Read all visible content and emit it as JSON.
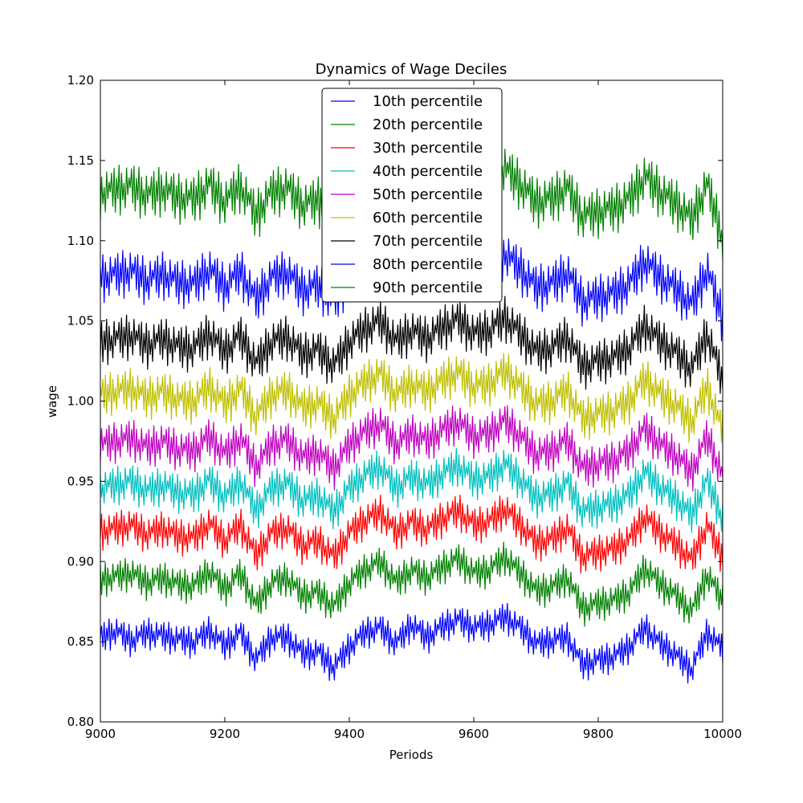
{
  "chart_data": {
    "type": "line",
    "title": "Dynamics of Wage Deciles",
    "xlabel": "Periods",
    "ylabel": "wage",
    "xlim": [
      9000,
      10000
    ],
    "ylim": [
      0.8,
      1.2
    ],
    "xticks": [
      9000,
      9200,
      9400,
      9600,
      9800,
      10000
    ],
    "yticks": [
      0.8,
      0.85,
      0.9,
      0.95,
      1.0,
      1.05,
      1.1,
      1.15,
      1.2
    ],
    "xtick_labels": [
      "9000",
      "9200",
      "9400",
      "9600",
      "9800",
      "10000"
    ],
    "ytick_labels": [
      "0.80",
      "0.85",
      "0.90",
      "0.95",
      "1.00",
      "1.05",
      "1.10",
      "1.15",
      "1.20"
    ],
    "grid": false,
    "legend_position": "top-center",
    "x_sampling": {
      "start": 9000,
      "end": 10000,
      "step": 25
    },
    "series": [
      {
        "name": "10th percentile",
        "color": "#0000ff",
        "values": [
          0.852,
          0.856,
          0.85,
          0.855,
          0.853,
          0.851,
          0.849,
          0.856,
          0.847,
          0.855,
          0.838,
          0.852,
          0.852,
          0.842,
          0.843,
          0.833,
          0.846,
          0.855,
          0.858,
          0.848,
          0.86,
          0.852,
          0.859,
          0.863,
          0.858,
          0.86,
          0.865,
          0.858,
          0.848,
          0.85,
          0.852,
          0.835,
          0.838,
          0.84,
          0.846,
          0.858,
          0.848,
          0.841,
          0.832,
          0.855,
          0.845
        ]
      },
      {
        "name": "20th percentile",
        "color": "#008000",
        "values": [
          0.888,
          0.89,
          0.892,
          0.886,
          0.889,
          0.885,
          0.884,
          0.893,
          0.882,
          0.892,
          0.872,
          0.886,
          0.889,
          0.878,
          0.88,
          0.871,
          0.886,
          0.894,
          0.899,
          0.886,
          0.894,
          0.889,
          0.896,
          0.901,
          0.892,
          0.894,
          0.902,
          0.892,
          0.881,
          0.883,
          0.889,
          0.87,
          0.873,
          0.875,
          0.88,
          0.895,
          0.885,
          0.878,
          0.868,
          0.891,
          0.875
        ]
      },
      {
        "name": "30th percentile",
        "color": "#ff0000",
        "values": [
          0.918,
          0.92,
          0.922,
          0.916,
          0.92,
          0.915,
          0.914,
          0.923,
          0.912,
          0.922,
          0.903,
          0.917,
          0.92,
          0.909,
          0.912,
          0.902,
          0.917,
          0.925,
          0.93,
          0.917,
          0.924,
          0.919,
          0.926,
          0.931,
          0.922,
          0.924,
          0.932,
          0.922,
          0.911,
          0.913,
          0.92,
          0.902,
          0.905,
          0.907,
          0.913,
          0.927,
          0.917,
          0.91,
          0.9,
          0.922,
          0.902
        ]
      },
      {
        "name": "40th percentile",
        "color": "#00bfbf",
        "values": [
          0.945,
          0.947,
          0.949,
          0.943,
          0.947,
          0.942,
          0.941,
          0.95,
          0.939,
          0.949,
          0.931,
          0.945,
          0.948,
          0.937,
          0.94,
          0.93,
          0.945,
          0.953,
          0.958,
          0.945,
          0.952,
          0.947,
          0.954,
          0.959,
          0.95,
          0.952,
          0.96,
          0.95,
          0.939,
          0.941,
          0.948,
          0.93,
          0.933,
          0.935,
          0.941,
          0.955,
          0.945,
          0.938,
          0.928,
          0.95,
          0.926
        ]
      },
      {
        "name": "50th percentile",
        "color": "#bf00bf",
        "values": [
          0.972,
          0.974,
          0.976,
          0.97,
          0.974,
          0.969,
          0.968,
          0.977,
          0.966,
          0.976,
          0.958,
          0.972,
          0.975,
          0.964,
          0.967,
          0.957,
          0.972,
          0.98,
          0.985,
          0.972,
          0.979,
          0.974,
          0.981,
          0.986,
          0.977,
          0.979,
          0.987,
          0.977,
          0.966,
          0.968,
          0.975,
          0.957,
          0.96,
          0.962,
          0.968,
          0.982,
          0.972,
          0.965,
          0.955,
          0.977,
          0.952
        ]
      },
      {
        "name": "60th percentile",
        "color": "#bfbf00",
        "values": [
          1.003,
          1.005,
          1.007,
          1.001,
          1.005,
          1.0,
          0.999,
          1.008,
          0.997,
          1.007,
          0.989,
          1.003,
          1.006,
          0.995,
          0.998,
          0.988,
          1.003,
          1.011,
          1.016,
          1.003,
          1.01,
          1.005,
          1.012,
          1.017,
          1.008,
          1.01,
          1.018,
          1.008,
          0.997,
          0.999,
          1.006,
          0.988,
          0.991,
          0.993,
          0.999,
          1.013,
          1.003,
          0.996,
          0.986,
          1.008,
          0.98
        ]
      },
      {
        "name": "70th percentile",
        "color": "#000000",
        "values": [
          1.036,
          1.038,
          1.04,
          1.034,
          1.038,
          1.033,
          1.032,
          1.041,
          1.03,
          1.04,
          1.022,
          1.036,
          1.039,
          1.028,
          1.031,
          1.021,
          1.036,
          1.044,
          1.049,
          1.036,
          1.043,
          1.038,
          1.045,
          1.05,
          1.041,
          1.043,
          1.051,
          1.041,
          1.03,
          1.032,
          1.039,
          1.021,
          1.024,
          1.026,
          1.032,
          1.046,
          1.036,
          1.029,
          1.019,
          1.041,
          1.012
        ]
      },
      {
        "name": "80th percentile",
        "color": "#0000ff",
        "values": [
          1.076,
          1.078,
          1.08,
          1.074,
          1.078,
          1.073,
          1.072,
          1.081,
          1.07,
          1.08,
          1.062,
          1.076,
          1.079,
          1.068,
          1.071,
          1.061,
          1.076,
          1.084,
          1.089,
          1.076,
          1.083,
          1.078,
          1.085,
          1.09,
          1.081,
          1.083,
          1.091,
          1.081,
          1.07,
          1.072,
          1.079,
          1.061,
          1.064,
          1.066,
          1.072,
          1.086,
          1.076,
          1.069,
          1.059,
          1.081,
          1.05
        ]
      },
      {
        "name": "90th percentile",
        "color": "#008000",
        "values": [
          1.129,
          1.131,
          1.133,
          1.127,
          1.131,
          1.126,
          1.125,
          1.134,
          1.123,
          1.133,
          1.115,
          1.129,
          1.132,
          1.121,
          1.124,
          1.114,
          1.129,
          1.137,
          1.142,
          1.129,
          1.136,
          1.131,
          1.138,
          1.143,
          1.134,
          1.136,
          1.144,
          1.134,
          1.123,
          1.125,
          1.132,
          1.114,
          1.117,
          1.119,
          1.125,
          1.139,
          1.129,
          1.122,
          1.112,
          1.134,
          1.1
        ]
      }
    ]
  }
}
